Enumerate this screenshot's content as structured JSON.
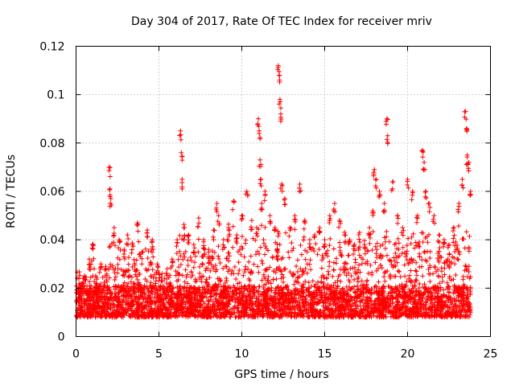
{
  "chart_data": {
    "type": "scatter",
    "title": "Day 304 of 2017, Rate Of TEC Index for receiver mriv",
    "xlabel": "GPS time / hours",
    "ylabel": "ROTI / TECUs",
    "xlim": [
      0,
      25
    ],
    "ylim": [
      0,
      0.12
    ],
    "xticks": [
      0,
      5,
      10,
      15,
      20,
      25
    ],
    "xtick_labels": [
      "0",
      "5",
      "10",
      "15",
      "20",
      "25"
    ],
    "yticks": [
      0,
      0.02,
      0.04,
      0.06,
      0.08,
      0.1,
      0.12
    ],
    "ytick_labels": [
      "0",
      "0.02",
      "0.04",
      "0.06",
      "0.08",
      "0.1",
      "0.12"
    ],
    "grid": true,
    "marker": "plus",
    "color": "#ff0000",
    "series": [
      {
        "name": "ROTI",
        "x": [
          0.2,
          0.5,
          0.8,
          1.0,
          1.2,
          1.5,
          1.8,
          2.0,
          2.05,
          2.1,
          2.3,
          2.6,
          2.9,
          3.1,
          3.4,
          3.7,
          4.0,
          4.3,
          4.6,
          4.9,
          5.2,
          5.5,
          5.8,
          6.1,
          6.3,
          6.35,
          6.4,
          6.5,
          6.8,
          7.1,
          7.4,
          7.7,
          8.0,
          8.3,
          8.5,
          8.6,
          8.9,
          9.2,
          9.5,
          9.7,
          10.0,
          10.3,
          10.6,
          10.9,
          11.0,
          11.05,
          11.1,
          11.15,
          11.2,
          11.4,
          11.7,
          12.0,
          12.2,
          12.25,
          12.3,
          12.35,
          12.4,
          12.6,
          12.9,
          13.2,
          13.5,
          13.8,
          14.1,
          14.4,
          14.7,
          15.0,
          15.3,
          15.6,
          15.9,
          16.2,
          16.5,
          16.8,
          17.1,
          17.4,
          17.7,
          17.9,
          18.0,
          18.1,
          18.3,
          18.6,
          18.75,
          18.8,
          19.1,
          19.4,
          19.7,
          20.0,
          20.3,
          20.6,
          20.9,
          21.0,
          21.1,
          21.3,
          21.6,
          21.9,
          22.2,
          22.5,
          22.8,
          23.1,
          23.3,
          23.5,
          23.55,
          23.6,
          23.7,
          23.8
        ],
        "y": [
          0.018,
          0.025,
          0.032,
          0.038,
          0.022,
          0.03,
          0.028,
          0.07,
          0.061,
          0.057,
          0.045,
          0.04,
          0.036,
          0.042,
          0.038,
          0.047,
          0.035,
          0.044,
          0.04,
          0.03,
          0.026,
          0.028,
          0.032,
          0.04,
          0.085,
          0.076,
          0.065,
          0.045,
          0.042,
          0.038,
          0.049,
          0.04,
          0.036,
          0.044,
          0.055,
          0.05,
          0.04,
          0.045,
          0.056,
          0.042,
          0.05,
          0.06,
          0.048,
          0.045,
          0.09,
          0.085,
          0.073,
          0.065,
          0.055,
          0.06,
          0.05,
          0.045,
          0.112,
          0.108,
          0.098,
          0.092,
          0.063,
          0.057,
          0.045,
          0.05,
          0.063,
          0.048,
          0.04,
          0.042,
          0.045,
          0.04,
          0.05,
          0.055,
          0.048,
          0.042,
          0.04,
          0.038,
          0.043,
          0.038,
          0.045,
          0.052,
          0.069,
          0.065,
          0.06,
          0.055,
          0.09,
          0.083,
          0.064,
          0.05,
          0.045,
          0.065,
          0.06,
          0.05,
          0.077,
          0.072,
          0.06,
          0.055,
          0.05,
          0.042,
          0.04,
          0.038,
          0.045,
          0.055,
          0.065,
          0.093,
          0.086,
          0.075,
          0.072,
          0.06
        ]
      }
    ]
  }
}
